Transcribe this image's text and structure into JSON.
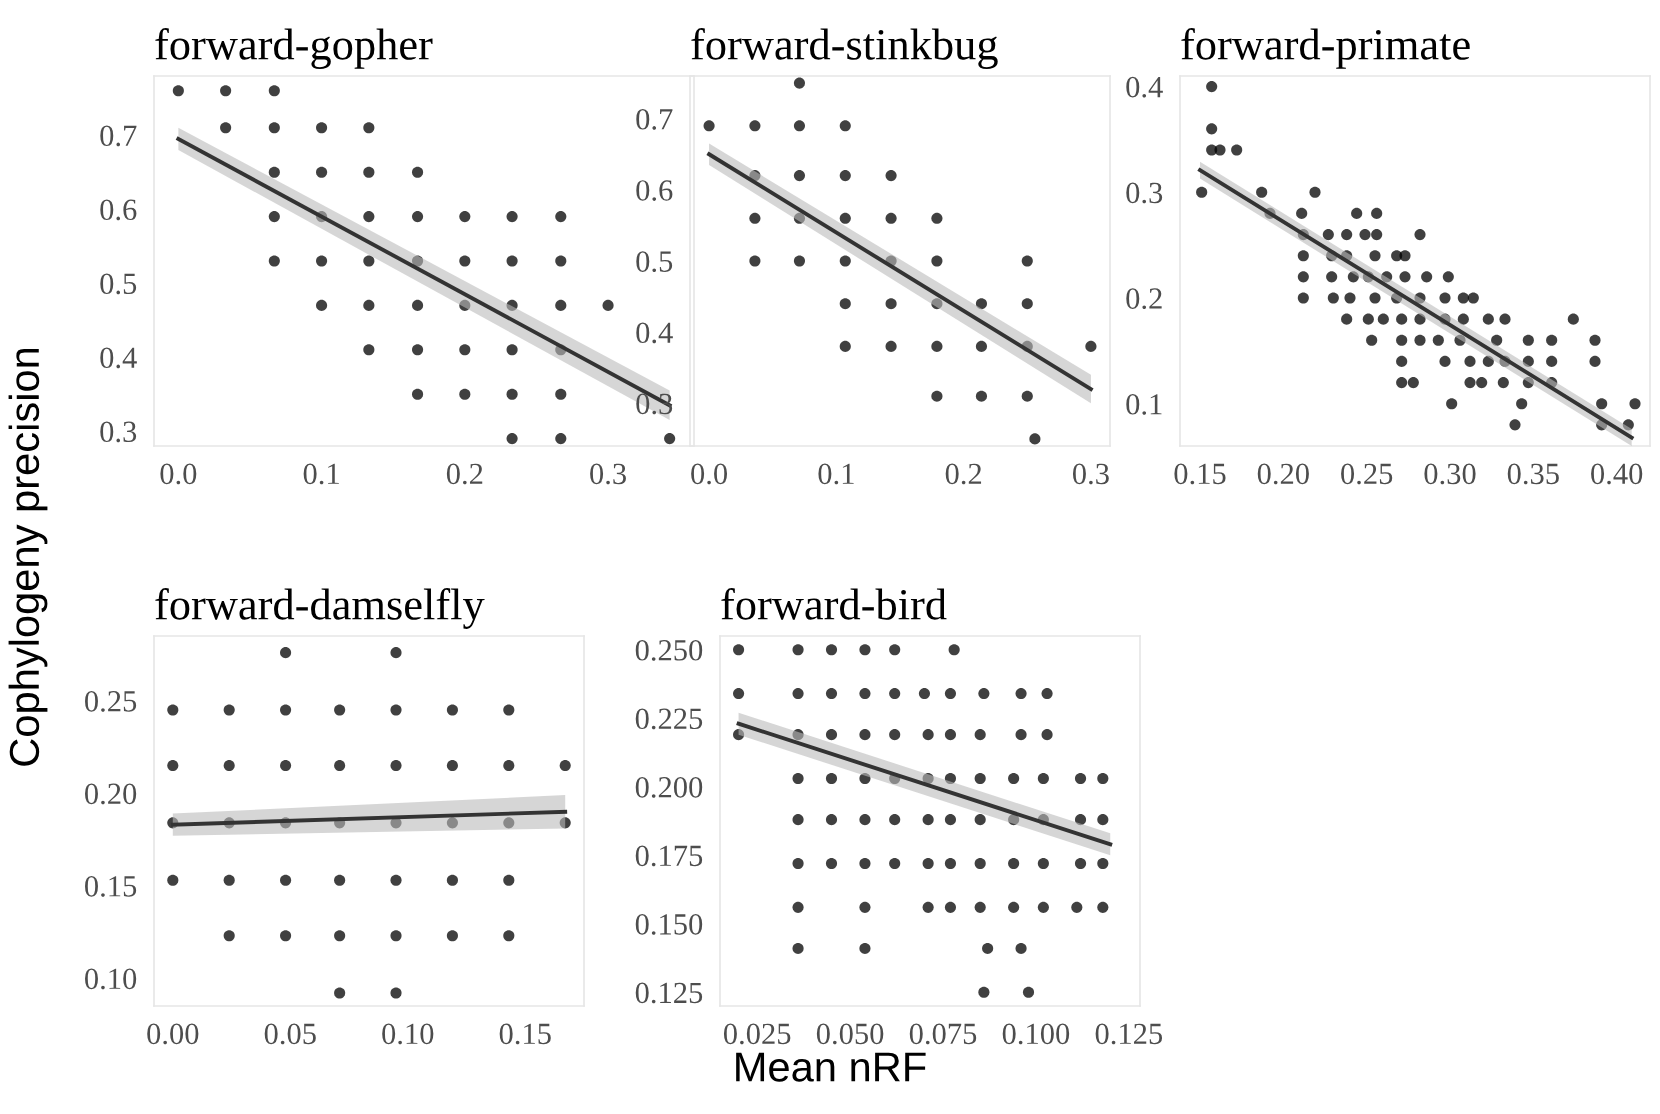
{
  "chart_data": [
    {
      "type": "scatter",
      "title": "forward-gopher",
      "xlim": [
        -0.017,
        0.36
      ],
      "ylim": [
        0.28,
        0.78
      ],
      "xticks": [
        {
          "value": 0,
          "label": "0.0"
        },
        0.1,
        0.2,
        0.3
      ],
      "yticks": [
        0.3,
        0.4,
        0.5,
        0.6,
        0.7
      ],
      "grid": false,
      "legend": false,
      "series": [
        {
          "color": "#000000",
          "marker": "circle",
          "x": [
            0,
            0.033,
            0.067,
            0.033,
            0.067,
            0.1,
            0.133,
            0.067,
            0.1,
            0.133,
            0.167,
            0.067,
            0.1,
            0.133,
            0.167,
            0.2,
            0.233,
            0.267,
            0.067,
            0.1,
            0.133,
            0.167,
            0.2,
            0.233,
            0.267,
            0.1,
            0.133,
            0.167,
            0.2,
            0.233,
            0.267,
            0.3,
            0.133,
            0.167,
            0.2,
            0.233,
            0.267,
            0.167,
            0.2,
            0.233,
            0.267,
            0.233,
            0.267,
            0.343
          ],
          "values": [
            0.76,
            0.76,
            0.76,
            0.71,
            0.71,
            0.71,
            0.71,
            0.65,
            0.65,
            0.65,
            0.65,
            0.59,
            0.59,
            0.59,
            0.59,
            0.59,
            0.59,
            0.59,
            0.53,
            0.53,
            0.53,
            0.53,
            0.53,
            0.53,
            0.53,
            0.47,
            0.47,
            0.47,
            0.47,
            0.47,
            0.47,
            0.47,
            0.41,
            0.41,
            0.41,
            0.41,
            0.41,
            0.35,
            0.35,
            0.35,
            0.35,
            0.29,
            0.29,
            0.29
          ]
        },
        {
          "type": "line",
          "color": "#333333",
          "x": [
            0,
            0.343
          ],
          "values": [
            0.695,
            0.335
          ],
          "lower": [
            0.68,
            0.315
          ],
          "upper": [
            0.71,
            0.355
          ]
        }
      ]
    },
    {
      "type": "scatter",
      "title": "forward-stinkbug",
      "xlim": [
        -0.015,
        0.315
      ],
      "ylim": [
        0.24,
        0.76
      ],
      "xticks": [
        {
          "value": 0,
          "label": "0.0"
        },
        0.1,
        0.2,
        0.3
      ],
      "yticks": [
        0.3,
        0.4,
        0.5,
        0.6,
        0.7
      ],
      "grid": false,
      "legend": false,
      "series": [
        {
          "color": "#000000",
          "marker": "circle",
          "x": [
            0.071,
            0,
            0.036,
            0.071,
            0.107,
            0.036,
            0.071,
            0.107,
            0.143,
            0.036,
            0.071,
            0.107,
            0.143,
            0.179,
            0.036,
            0.071,
            0.107,
            0.143,
            0.179,
            0.25,
            0.107,
            0.143,
            0.179,
            0.214,
            0.25,
            0.107,
            0.143,
            0.179,
            0.214,
            0.25,
            0.3,
            0.179,
            0.214,
            0.25,
            0.256
          ],
          "values": [
            0.75,
            0.69,
            0.69,
            0.69,
            0.69,
            0.62,
            0.62,
            0.62,
            0.62,
            0.56,
            0.56,
            0.56,
            0.56,
            0.56,
            0.5,
            0.5,
            0.5,
            0.5,
            0.5,
            0.5,
            0.44,
            0.44,
            0.44,
            0.44,
            0.44,
            0.38,
            0.38,
            0.38,
            0.38,
            0.38,
            0.38,
            0.31,
            0.31,
            0.31,
            0.25
          ]
        },
        {
          "type": "line",
          "color": "#333333",
          "x": [
            0,
            0.3
          ],
          "values": [
            0.65,
            0.32
          ],
          "lower": [
            0.635,
            0.3
          ],
          "upper": [
            0.665,
            0.34
          ]
        }
      ]
    },
    {
      "type": "scatter",
      "title": "forward-primate",
      "xlim": [
        0.138,
        0.42
      ],
      "ylim": [
        0.06,
        0.41
      ],
      "xticks": [
        {
          "value": 0.15,
          "label": "0.15"
        },
        {
          "value": 0.2,
          "label": "0.20"
        },
        {
          "value": 0.25,
          "label": "0.25"
        },
        {
          "value": 0.3,
          "label": "0.30"
        },
        {
          "value": 0.35,
          "label": "0.35"
        },
        {
          "value": 0.4,
          "label": "0.40"
        }
      ],
      "yticks": [
        0.1,
        0.2,
        0.3,
        0.4
      ],
      "grid": false,
      "legend": false,
      "series": [
        {
          "color": "#000000",
          "marker": "circle",
          "x": [
            0.157,
            0.157,
            0.157,
            0.162,
            0.172,
            0.151,
            0.187,
            0.219,
            0.192,
            0.211,
            0.244,
            0.256,
            0.212,
            0.227,
            0.238,
            0.249,
            0.256,
            0.282,
            0.212,
            0.229,
            0.238,
            0.255,
            0.268,
            0.273,
            0.212,
            0.229,
            0.242,
            0.251,
            0.262,
            0.273,
            0.286,
            0.299,
            0.212,
            0.23,
            0.24,
            0.255,
            0.268,
            0.282,
            0.297,
            0.308,
            0.314,
            0.238,
            0.251,
            0.26,
            0.271,
            0.282,
            0.297,
            0.308,
            0.323,
            0.333,
            0.374,
            0.253,
            0.271,
            0.282,
            0.293,
            0.306,
            0.328,
            0.347,
            0.361,
            0.387,
            0.271,
            0.297,
            0.312,
            0.323,
            0.333,
            0.347,
            0.361,
            0.387,
            0.271,
            0.278,
            0.312,
            0.319,
            0.332,
            0.347,
            0.361,
            0.301,
            0.343,
            0.391,
            0.411,
            0.339,
            0.391,
            0.407
          ],
          "values": [
            0.4,
            0.36,
            0.34,
            0.34,
            0.34,
            0.3,
            0.3,
            0.3,
            0.28,
            0.28,
            0.28,
            0.28,
            0.26,
            0.26,
            0.26,
            0.26,
            0.26,
            0.26,
            0.24,
            0.24,
            0.24,
            0.24,
            0.24,
            0.24,
            0.22,
            0.22,
            0.22,
            0.22,
            0.22,
            0.22,
            0.22,
            0.22,
            0.2,
            0.2,
            0.2,
            0.2,
            0.2,
            0.2,
            0.2,
            0.2,
            0.2,
            0.18,
            0.18,
            0.18,
            0.18,
            0.18,
            0.18,
            0.18,
            0.18,
            0.18,
            0.18,
            0.16,
            0.16,
            0.16,
            0.16,
            0.16,
            0.16,
            0.16,
            0.16,
            0.16,
            0.14,
            0.14,
            0.14,
            0.14,
            0.14,
            0.14,
            0.14,
            0.14,
            0.12,
            0.12,
            0.12,
            0.12,
            0.12,
            0.12,
            0.12,
            0.1,
            0.1,
            0.1,
            0.1,
            0.08,
            0.08,
            0.08
          ]
        },
        {
          "type": "line",
          "color": "#333333",
          "x": [
            0.15,
            0.409
          ],
          "values": [
            0.321,
            0.068
          ],
          "lower": [
            0.313,
            0.06
          ],
          "upper": [
            0.329,
            0.076
          ]
        }
      ]
    },
    {
      "type": "scatter",
      "title": "forward-damselfly",
      "ylabel": "Cophylogeny precision",
      "xlim": [
        -0.008,
        0.175
      ],
      "ylim": [
        0.085,
        0.285
      ],
      "xticks": [
        {
          "value": 0,
          "label": "0.00"
        },
        {
          "value": 0.05,
          "label": "0.05"
        },
        {
          "value": 0.1,
          "label": "0.10"
        },
        {
          "value": 0.15,
          "label": "0.15"
        }
      ],
      "yticks": [
        {
          "value": 0.1,
          "label": "0.10"
        },
        0.15,
        {
          "value": 0.2,
          "label": "0.20"
        },
        0.25
      ],
      "grid": false,
      "legend": false,
      "series": [
        {
          "color": "#000000",
          "marker": "circle",
          "x": [
            0.048,
            0.095,
            0,
            0.024,
            0.048,
            0.071,
            0.095,
            0.119,
            0.143,
            0,
            0.024,
            0.048,
            0.071,
            0.095,
            0.119,
            0.143,
            0.167,
            0,
            0.024,
            0.048,
            0.071,
            0.095,
            0.119,
            0.143,
            0.167,
            0,
            0.024,
            0.048,
            0.071,
            0.095,
            0.119,
            0.143,
            0.024,
            0.048,
            0.071,
            0.095,
            0.119,
            0.143,
            0.071,
            0.095
          ],
          "values": [
            0.276,
            0.276,
            0.245,
            0.245,
            0.245,
            0.245,
            0.245,
            0.245,
            0.245,
            0.215,
            0.215,
            0.215,
            0.215,
            0.215,
            0.215,
            0.215,
            0.215,
            0.184,
            0.184,
            0.184,
            0.184,
            0.184,
            0.184,
            0.184,
            0.184,
            0.153,
            0.153,
            0.153,
            0.153,
            0.153,
            0.153,
            0.153,
            0.123,
            0.123,
            0.123,
            0.123,
            0.123,
            0.123,
            0.092,
            0.092
          ]
        },
        {
          "type": "line",
          "color": "#333333",
          "x": [
            0,
            0.167
          ],
          "values": [
            0.183,
            0.19
          ],
          "lower": [
            0.177,
            0.181
          ],
          "upper": [
            0.189,
            0.199
          ]
        }
      ]
    },
    {
      "type": "scatter",
      "title": "forward-bird",
      "xlabel": "Mean nRF",
      "xlim": [
        0.015,
        0.128
      ],
      "ylim": [
        0.12,
        0.255
      ],
      "xticks": [
        0.025,
        {
          "value": 0.05,
          "label": "0.050"
        },
        0.075,
        {
          "value": 0.1,
          "label": "0.100"
        },
        0.125
      ],
      "yticks": [
        0.125,
        {
          "value": 0.15,
          "label": "0.150"
        },
        0.175,
        {
          "value": 0.2,
          "label": "0.200"
        },
        0.225,
        {
          "value": 0.25,
          "label": "0.250"
        }
      ],
      "grid": false,
      "legend": false,
      "series": [
        {
          "color": "#000000",
          "marker": "circle",
          "x": [
            0.02,
            0.036,
            0.045,
            0.054,
            0.062,
            0.078,
            0.02,
            0.036,
            0.045,
            0.054,
            0.062,
            0.07,
            0.077,
            0.086,
            0.096,
            0.103,
            0.02,
            0.036,
            0.045,
            0.054,
            0.062,
            0.071,
            0.077,
            0.085,
            0.096,
            0.103,
            0.036,
            0.045,
            0.054,
            0.062,
            0.071,
            0.077,
            0.085,
            0.094,
            0.102,
            0.112,
            0.118,
            0.036,
            0.045,
            0.054,
            0.062,
            0.071,
            0.077,
            0.085,
            0.094,
            0.102,
            0.112,
            0.118,
            0.036,
            0.045,
            0.054,
            0.062,
            0.071,
            0.077,
            0.085,
            0.094,
            0.102,
            0.112,
            0.118,
            0.036,
            0.054,
            0.071,
            0.077,
            0.085,
            0.094,
            0.102,
            0.111,
            0.118,
            0.036,
            0.054,
            0.087,
            0.096,
            0.086,
            0.098
          ],
          "values": [
            0.25,
            0.25,
            0.25,
            0.25,
            0.25,
            0.25,
            0.234,
            0.234,
            0.234,
            0.234,
            0.234,
            0.234,
            0.234,
            0.234,
            0.234,
            0.234,
            0.219,
            0.219,
            0.219,
            0.219,
            0.219,
            0.219,
            0.219,
            0.219,
            0.219,
            0.219,
            0.203,
            0.203,
            0.203,
            0.203,
            0.203,
            0.203,
            0.203,
            0.203,
            0.203,
            0.203,
            0.203,
            0.188,
            0.188,
            0.188,
            0.188,
            0.188,
            0.188,
            0.188,
            0.188,
            0.188,
            0.188,
            0.188,
            0.172,
            0.172,
            0.172,
            0.172,
            0.172,
            0.172,
            0.172,
            0.172,
            0.172,
            0.172,
            0.172,
            0.156,
            0.156,
            0.156,
            0.156,
            0.156,
            0.156,
            0.156,
            0.156,
            0.156,
            0.141,
            0.141,
            0.141,
            0.141,
            0.125,
            0.125
          ]
        },
        {
          "type": "line",
          "color": "#333333",
          "x": [
            0.02,
            0.12
          ],
          "values": [
            0.223,
            0.179
          ],
          "lower": [
            0.219,
            0.175
          ],
          "upper": [
            0.227,
            0.183
          ]
        }
      ]
    }
  ]
}
